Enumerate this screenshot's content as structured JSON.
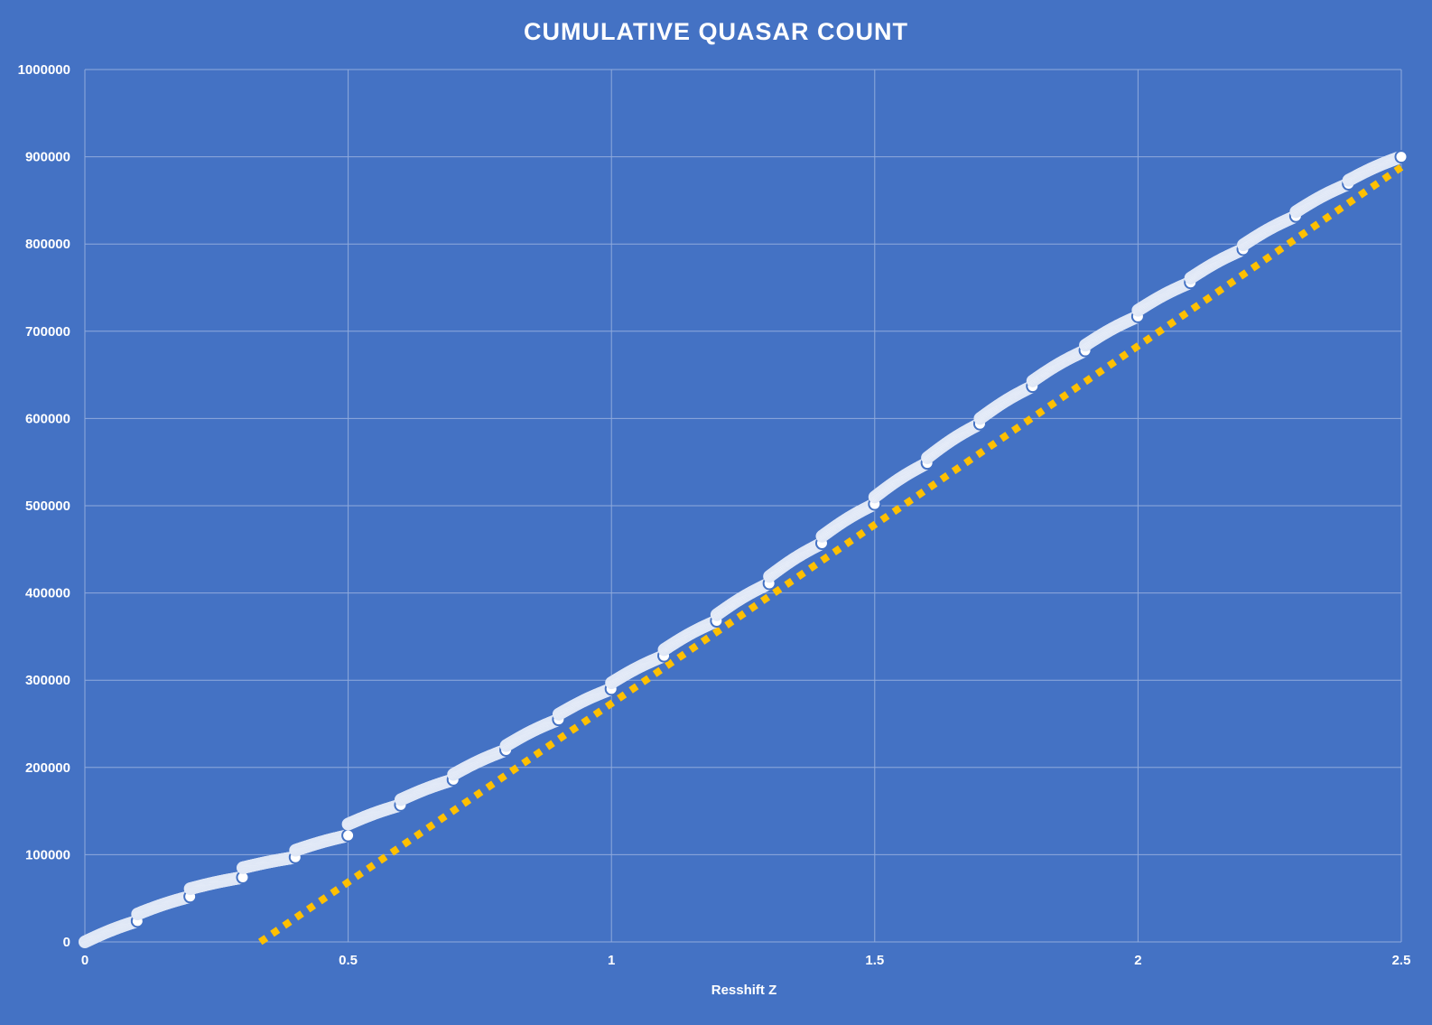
{
  "chart_data": {
    "type": "scatter",
    "title": "CUMULATIVE QUASAR COUNT",
    "xlabel": "Resshift Z",
    "ylabel": "",
    "xlim": [
      0,
      2.5
    ],
    "ylim": [
      0,
      1000000
    ],
    "x_ticks": [
      "0",
      "0.5",
      "1",
      "1.5",
      "2",
      "2.5"
    ],
    "y_ticks": [
      "0",
      "100000",
      "200000",
      "300000",
      "400000",
      "500000",
      "600000",
      "700000",
      "800000",
      "900000",
      "1000000"
    ],
    "grid": true,
    "legend": "none",
    "colors": {
      "background": "#4472c4",
      "marker_fill": "#ffffff",
      "marker_edge": "#4472c4",
      "trendline": "#ffc000",
      "grid": "#8faadc"
    },
    "series": [
      {
        "marker": "circle",
        "segments": [
          {
            "x0": 0.0,
            "x1": 0.1,
            "y0": 0,
            "y1": 24000
          },
          {
            "x0": 0.1,
            "x1": 0.2,
            "y0": 32000,
            "y1": 52000
          },
          {
            "x0": 0.2,
            "x1": 0.3,
            "y0": 61000,
            "y1": 74000
          },
          {
            "x0": 0.3,
            "x1": 0.4,
            "y0": 85000,
            "y1": 97000
          },
          {
            "x0": 0.4,
            "x1": 0.5,
            "y0": 105000,
            "y1": 122000
          },
          {
            "x0": 0.5,
            "x1": 0.6,
            "y0": 135000,
            "y1": 157000
          },
          {
            "x0": 0.6,
            "x1": 0.7,
            "y0": 163000,
            "y1": 186000
          },
          {
            "x0": 0.7,
            "x1": 0.8,
            "y0": 192000,
            "y1": 220000
          },
          {
            "x0": 0.8,
            "x1": 0.9,
            "y0": 225000,
            "y1": 255000
          },
          {
            "x0": 0.9,
            "x1": 1.0,
            "y0": 261000,
            "y1": 290000
          },
          {
            "x0": 1.0,
            "x1": 1.1,
            "y0": 297000,
            "y1": 328000
          },
          {
            "x0": 1.1,
            "x1": 1.2,
            "y0": 335000,
            "y1": 368000
          },
          {
            "x0": 1.2,
            "x1": 1.3,
            "y0": 375000,
            "y1": 411000
          },
          {
            "x0": 1.3,
            "x1": 1.4,
            "y0": 419000,
            "y1": 457000
          },
          {
            "x0": 1.4,
            "x1": 1.5,
            "y0": 465000,
            "y1": 502000
          },
          {
            "x0": 1.5,
            "x1": 1.6,
            "y0": 510000,
            "y1": 549000
          },
          {
            "x0": 1.6,
            "x1": 1.7,
            "y0": 555000,
            "y1": 594000
          },
          {
            "x0": 1.7,
            "x1": 1.8,
            "y0": 600000,
            "y1": 637000
          },
          {
            "x0": 1.8,
            "x1": 1.9,
            "y0": 643000,
            "y1": 678000
          },
          {
            "x0": 1.9,
            "x1": 2.0,
            "y0": 684000,
            "y1": 717000
          },
          {
            "x0": 2.0,
            "x1": 2.1,
            "y0": 724000,
            "y1": 756000
          },
          {
            "x0": 2.1,
            "x1": 2.2,
            "y0": 761000,
            "y1": 794000
          },
          {
            "x0": 2.2,
            "x1": 2.3,
            "y0": 799000,
            "y1": 832000
          },
          {
            "x0": 2.3,
            "x1": 2.4,
            "y0": 837000,
            "y1": 869000
          },
          {
            "x0": 2.4,
            "x1": 2.5,
            "y0": 873000,
            "y1": 900000
          }
        ]
      }
    ],
    "trendline": {
      "style": "dotted",
      "x0": 0.333,
      "y0": 0,
      "x1": 2.5,
      "y1": 888000
    }
  }
}
